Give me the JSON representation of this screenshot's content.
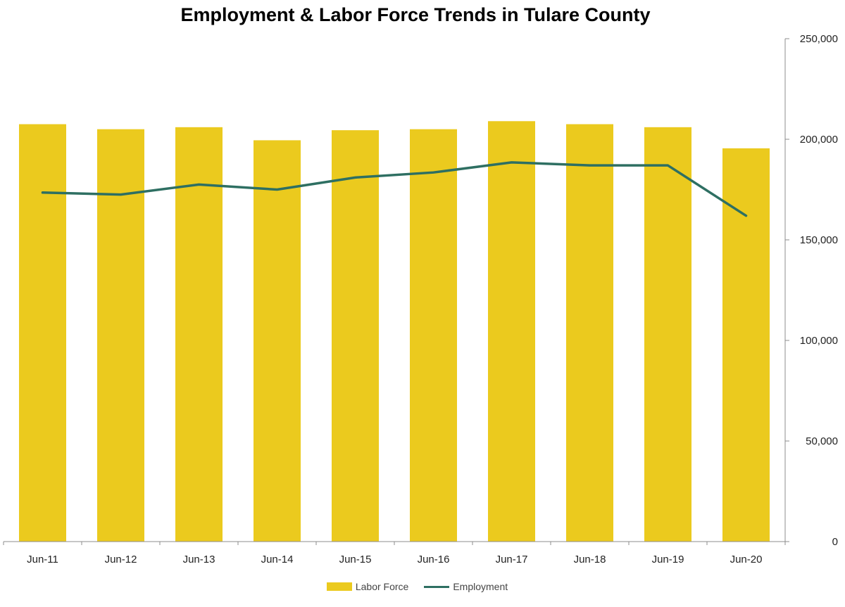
{
  "chart_data": {
    "type": "bar",
    "title": "Employment & Labor Force Trends in Tulare County",
    "categories": [
      "Jun-11",
      "Jun-12",
      "Jun-13",
      "Jun-14",
      "Jun-15",
      "Jun-16",
      "Jun-17",
      "Jun-18",
      "Jun-19",
      "Jun-20"
    ],
    "series": [
      {
        "name": "Labor Force",
        "type": "bar",
        "color": "#EBCA1E",
        "values": [
          207500,
          205000,
          206000,
          199500,
          204500,
          205000,
          209000,
          207500,
          206000,
          195500
        ]
      },
      {
        "name": "Employment",
        "type": "line",
        "color": "#2E6F62",
        "values": [
          173500,
          172500,
          177500,
          175000,
          181000,
          183500,
          188500,
          187000,
          187000,
          162000
        ]
      }
    ],
    "y_axis": {
      "position": "right",
      "ylim": [
        0,
        250000
      ],
      "ticks": [
        0,
        50000,
        100000,
        150000,
        200000,
        250000
      ],
      "tick_labels": [
        "0",
        "50,000",
        "100,000",
        "150,000",
        "200,000",
        "250,000"
      ]
    },
    "grid": false,
    "legend_position": "bottom"
  }
}
